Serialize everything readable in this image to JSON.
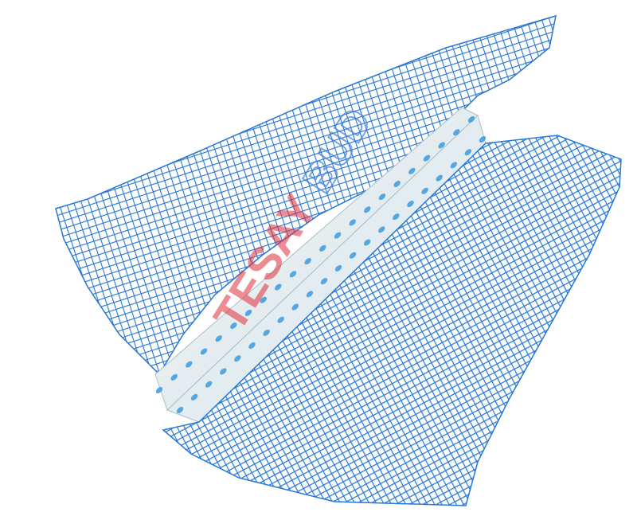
{
  "product": {
    "name": "",
    "mesh_color": "#1e6fd0",
    "mesh_highlight": "#5aa6ee",
    "profile_color": "#eef4f6",
    "profile_shadow": "#b9cdd5",
    "hole_color": "#3a9be0"
  },
  "watermark": {
    "text_main": "TESAY",
    "text_suffix": "BUD",
    "main_color": "#e0303a",
    "suffix_color": "#3f7fd8"
  }
}
